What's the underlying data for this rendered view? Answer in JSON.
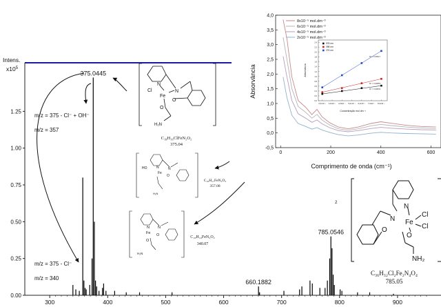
{
  "chart_data": [
    {
      "type": "bar",
      "title": "",
      "ylabel": "Intens.",
      "y_exponent_label": "x10",
      "y_exponent": "5",
      "xlim": [
        257,
        975
      ],
      "ylim": [
        0,
        1.58
      ],
      "x_ticks": [
        "300",
        "400",
        "500",
        "600",
        "700",
        "800",
        "900"
      ],
      "y_ticks": [
        "0.00",
        "0.25",
        "0.50",
        "0.75",
        "1.00",
        "1.25"
      ],
      "peaks": [
        {
          "mz": 340,
          "rel": 0.07
        },
        {
          "mz": 345,
          "rel": 0.04
        },
        {
          "mz": 351,
          "rel": 0.03
        },
        {
          "mz": 357,
          "rel": 0.8
        },
        {
          "mz": 359,
          "rel": 0.1
        },
        {
          "mz": 361,
          "rel": 0.05
        },
        {
          "mz": 363,
          "rel": 0.04
        },
        {
          "mz": 369,
          "rel": 0.07
        },
        {
          "mz": 373,
          "rel": 0.25
        },
        {
          "mz": 375.0445,
          "rel": 1.48
        },
        {
          "mz": 377,
          "rel": 0.5
        },
        {
          "mz": 379,
          "rel": 0.1
        },
        {
          "mz": 381,
          "rel": 0.06
        },
        {
          "mz": 385,
          "rel": 0.03
        },
        {
          "mz": 391,
          "rel": 0.05
        },
        {
          "mz": 393,
          "rel": 0.08
        },
        {
          "mz": 397,
          "rel": 0.03
        },
        {
          "mz": 412,
          "rel": 0.03
        },
        {
          "mz": 432,
          "rel": 0.02
        },
        {
          "mz": 455,
          "rel": 0.02
        },
        {
          "mz": 511,
          "rel": 0.02
        },
        {
          "mz": 660.1882,
          "rel": 0.06
        },
        {
          "mz": 662,
          "rel": 0.02
        },
        {
          "mz": 704,
          "rel": 0.03
        },
        {
          "mz": 731,
          "rel": 0.04
        },
        {
          "mz": 735,
          "rel": 0.06
        },
        {
          "mz": 749,
          "rel": 0.1
        },
        {
          "mz": 753,
          "rel": 0.08
        },
        {
          "mz": 766,
          "rel": 0.05
        },
        {
          "mz": 775,
          "rel": 0.05
        },
        {
          "mz": 779,
          "rel": 0.1
        },
        {
          "mz": 783,
          "rel": 0.25
        },
        {
          "mz": 785.0546,
          "rel": 0.4
        },
        {
          "mz": 787,
          "rel": 0.32
        },
        {
          "mz": 789,
          "rel": 0.14
        },
        {
          "mz": 791,
          "rel": 0.07
        },
        {
          "mz": 801,
          "rel": 0.04
        },
        {
          "mz": 804,
          "rel": 0.03
        },
        {
          "mz": 831,
          "rel": 0.02
        },
        {
          "mz": 852,
          "rel": 0.02
        },
        {
          "mz": 893,
          "rel": 0.01
        }
      ],
      "peak_labels": [
        {
          "mz": 375.0445,
          "label": "375.0445"
        },
        {
          "mz": 660.1882,
          "label": "660.1882"
        },
        {
          "mz": 785.0546,
          "label": "785.0546"
        }
      ],
      "annotations": [
        "m/z = 375 - Cl⁻ + OH⁻",
        "m/z = 357",
        "m/z = 375 - Cl⁻",
        "m/z = 340"
      ],
      "charge_label": "2"
    },
    {
      "type": "line",
      "title": "",
      "xlabel": "Comprimento de onda (cm⁻¹)",
      "ylabel": "Absorvância",
      "xlim": [
        -20,
        640
      ],
      "ylim": [
        -0.5,
        4.0
      ],
      "x_ticks": [
        "0",
        "200",
        "400",
        "600"
      ],
      "y_ticks": [
        "-0,5",
        "0,0",
        "0,5",
        "1,0",
        "1,5",
        "2,0",
        "2,5",
        "3,0",
        "3,5",
        "4,0"
      ],
      "legend_position": "top-left",
      "series": [
        {
          "name": "8x10⁻⁵ mol.dm⁻³",
          "color": "#c9878c",
          "x": [
            10,
            25,
            45,
            70,
            100,
            125,
            145,
            165,
            195,
            230,
            270,
            310,
            360,
            400,
            440,
            500,
            560,
            620
          ],
          "y": [
            3.85,
            3.2,
            1.9,
            1.1,
            0.87,
            0.62,
            0.8,
            0.55,
            0.35,
            0.2,
            0.14,
            0.2,
            0.32,
            0.38,
            0.33,
            0.26,
            0.22,
            0.2
          ]
        },
        {
          "name": "6x10⁻⁵ mol.dm⁻³",
          "color": "#b4b4b4",
          "x": [
            10,
            25,
            45,
            70,
            100,
            125,
            145,
            165,
            195,
            230,
            270,
            310,
            360,
            400,
            440,
            500,
            560,
            620
          ],
          "y": [
            3.25,
            2.5,
            1.5,
            0.9,
            0.7,
            0.5,
            0.63,
            0.44,
            0.27,
            0.14,
            0.09,
            0.14,
            0.24,
            0.29,
            0.25,
            0.2,
            0.17,
            0.15
          ]
        },
        {
          "name": "4x10⁻⁵ mol.dm⁻³",
          "color": "#b79bc0",
          "x": [
            10,
            25,
            45,
            70,
            100,
            125,
            145,
            165,
            195,
            230,
            270,
            310,
            360,
            400,
            440,
            500,
            560,
            620
          ],
          "y": [
            2.6,
            1.9,
            1.1,
            0.65,
            0.5,
            0.36,
            0.44,
            0.31,
            0.18,
            0.08,
            0.04,
            0.08,
            0.15,
            0.19,
            0.16,
            0.13,
            0.11,
            0.1
          ]
        },
        {
          "name": "2x10⁻⁵ mol.dm⁻³",
          "color": "#8fb2cc",
          "x": [
            10,
            25,
            45,
            70,
            100,
            125,
            145,
            165,
            195,
            230,
            270,
            310,
            360,
            400,
            440,
            500,
            560,
            620
          ],
          "y": [
            1.9,
            1.2,
            0.6,
            0.32,
            0.22,
            0.13,
            0.18,
            0.1,
            0.02,
            -0.06,
            -0.1,
            -0.07,
            -0.01,
            0.02,
            0.0,
            -0.02,
            -0.03,
            -0.04
          ]
        }
      ]
    },
    {
      "type": "scatter",
      "title": "",
      "xlabel": "Concentração mol dm⁻³",
      "ylabel": "Absorvância",
      "x_ticks": [
        "2,0x10⁻⁵",
        "3,0x10⁻⁵",
        "4,0x10⁻⁵",
        "5,0x10⁻⁵",
        "6,0x10⁻⁵",
        "7,0x10⁻⁵",
        "8,0x10⁻⁵"
      ],
      "y_ticks": [
        "0,0",
        "0,2",
        "0,4",
        "0,6",
        "0,8",
        "1,0",
        "1,2",
        "1,4",
        "1,6",
        "1,8",
        "2,0",
        "2,2",
        "2,4"
      ],
      "xlim": [
        1.6,
        8.6
      ],
      "ylim": [
        0,
        2.5
      ],
      "legend_position": "top-left",
      "series": [
        {
          "name": "578 nm",
          "color": "#111111",
          "x": [
            2,
            4,
            6,
            8
          ],
          "y": [
            0.28,
            0.4,
            0.52,
            0.62
          ]
        },
        {
          "name": "398 nm",
          "color": "#cc2222",
          "x": [
            2,
            4,
            6,
            8
          ],
          "y": [
            0.35,
            0.52,
            0.72,
            0.9
          ]
        },
        {
          "name": "276 nm",
          "color": "#2244cc",
          "x": [
            2,
            4,
            6,
            8
          ],
          "y": [
            0.55,
            1.05,
            1.55,
            2.05
          ]
        }
      ],
      "fit_labels": [
        "R² = 0,99832",
        "R² = 0,99854",
        "R² = 0,99917"
      ]
    }
  ],
  "structures": {
    "s1": {
      "formula": "C₁₈H₁₆ClFeN₂O₂",
      "mass": "375.04",
      "atoms": {
        "n_py": "N",
        "n_am": "N",
        "fe": "Fe",
        "cl": "Cl",
        "o1": "O",
        "o2": "O",
        "nh2": "H₂N"
      }
    },
    "s2": {
      "formula": "C₁₈H₁₇FeN₂O₃",
      "mass": "357.08",
      "atoms": {
        "n_py": "N",
        "n_am": "N",
        "fe": "Fe",
        "ho": "HO",
        "o1": "O",
        "nh2": "H₂N"
      }
    },
    "s3": {
      "formula": "C₁₈H₁₆FeN₂O₂",
      "mass": "340.07",
      "atoms": {
        "n_py": "N",
        "n_am": "N",
        "fe": "Fe",
        "o1": "O",
        "o2": "O",
        "nh2": "H₂N"
      }
    },
    "s4": {
      "formula": "C₃₆H₃₂Cl₂Fe₂N₄O₄",
      "mass": "785.05",
      "atoms": {
        "n_py": "N",
        "n_am": "N",
        "fe": "Fe",
        "cl1": "Cl",
        "cl2": "Cl",
        "o1": "O",
        "o2": "O",
        "nh2": "NH₂"
      }
    }
  }
}
